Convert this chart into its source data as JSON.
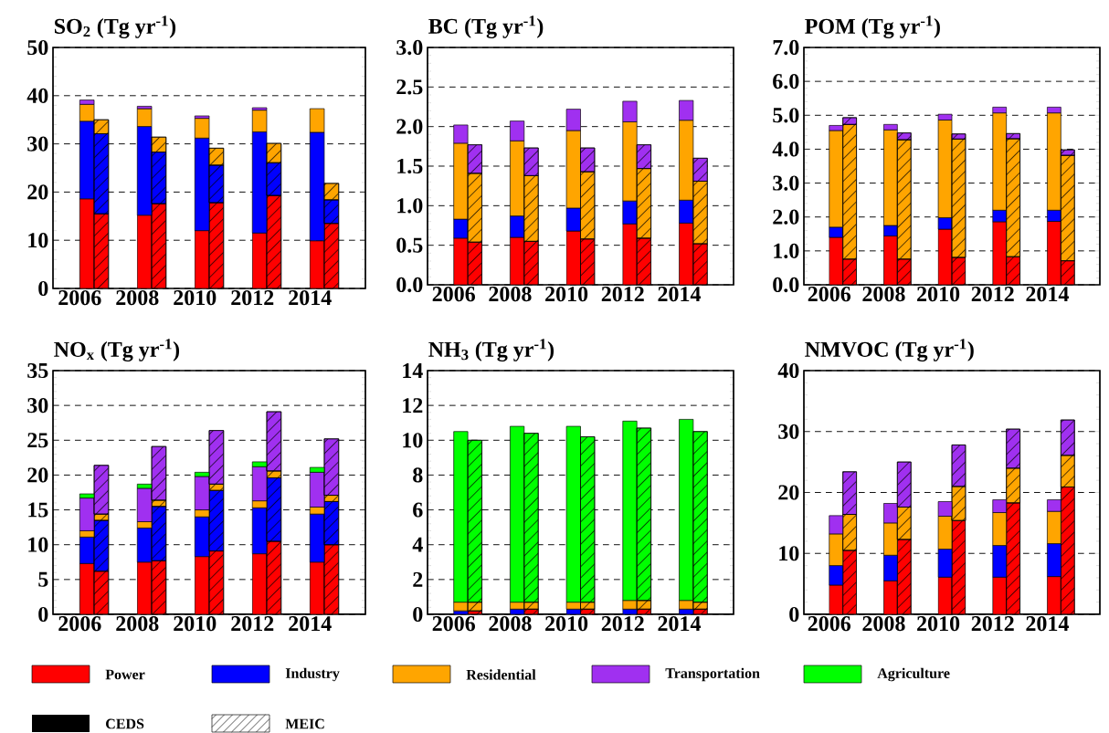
{
  "chart_data": [
    {
      "type": "bar",
      "stacked": true,
      "grid": "y",
      "title": "SO$_{2}$ (Tg yr$^{-1}$)",
      "categories": [
        "2006",
        null,
        "2008",
        null,
        "2010",
        null,
        "2012",
        null,
        "2014",
        null
      ],
      "ylim": [
        0,
        50
      ],
      "yticks": [
        0,
        10,
        20,
        30,
        40,
        50
      ],
      "series": [
        {
          "color": "#ff0000",
          "values": [
            18.6,
            15.5,
            15.2,
            17.6,
            12.0,
            17.8,
            11.5,
            19.3,
            9.9,
            13.5
          ]
        },
        {
          "color": "#0000ff",
          "values": [
            16.1,
            16.6,
            18.4,
            10.7,
            19.2,
            7.8,
            21.0,
            6.8,
            22.5,
            4.9
          ]
        },
        {
          "color": "#ffa500",
          "values": [
            3.5,
            2.9,
            3.7,
            3.1,
            4.1,
            3.5,
            4.5,
            4.0,
            4.9,
            3.4
          ]
        },
        {
          "color": "#a030f0",
          "values": [
            0.9,
            null,
            0.5,
            null,
            0.5,
            null,
            0.5,
            null,
            null,
            null
          ]
        }
      ]
    },
    {
      "type": "bar",
      "stacked": true,
      "grid": "y",
      "title": "BC (Tg yr$^{-1}$)",
      "categories": [
        "2006",
        null,
        "2008",
        null,
        "2010",
        null,
        "2012",
        null,
        "2014",
        null
      ],
      "ylim": [
        0,
        3.0
      ],
      "yticks": [
        {
          "value": 0,
          "label": "0.0"
        },
        {
          "value": 0.5,
          "label": "0.5"
        },
        {
          "value": 1,
          "label": "1.0"
        },
        {
          "value": 1.5,
          "label": "1.5"
        },
        {
          "value": 2,
          "label": "2.0"
        },
        {
          "value": 2.5,
          "label": "2.5"
        },
        {
          "value": 3,
          "label": "3.0"
        }
      ],
      "series": [
        {
          "color": "#ff0000",
          "values": [
            0.59,
            0.54,
            0.6,
            0.55,
            0.68,
            0.58,
            0.77,
            0.59,
            0.78,
            0.52
          ]
        },
        {
          "color": "#0000ff",
          "values": [
            0.24,
            null,
            0.27,
            null,
            0.29,
            null,
            0.29,
            null,
            0.29,
            null
          ]
        },
        {
          "color": "#ffa500",
          "values": [
            0.96,
            0.87,
            0.95,
            0.83,
            0.98,
            0.85,
            1.0,
            0.88,
            1.01,
            0.79
          ]
        },
        {
          "color": "#a030f0",
          "values": [
            0.23,
            0.36,
            0.25,
            0.35,
            0.27,
            0.3,
            0.26,
            0.3,
            0.25,
            0.29
          ]
        }
      ]
    },
    {
      "type": "bar",
      "stacked": true,
      "grid": "y",
      "title": "POM (Tg yr$^{-1}$)",
      "categories": [
        "2006",
        null,
        "2008",
        null,
        "2010",
        null,
        "2012",
        null,
        "2014",
        null
      ],
      "ylim": [
        0,
        7.0
      ],
      "yticks": [
        {
          "value": 0,
          "label": "0.0"
        },
        {
          "value": 1,
          "label": "1.0"
        },
        {
          "value": 2,
          "label": "2.0"
        },
        {
          "value": 3,
          "label": "3.0"
        },
        {
          "value": 4,
          "label": "4.0"
        },
        {
          "value": 5,
          "label": "5.0"
        },
        {
          "value": 6,
          "label": "6.0"
        },
        {
          "value": 7,
          "label": "7.0"
        }
      ],
      "series": [
        {
          "color": "#ff0000",
          "values": [
            1.4,
            0.76,
            1.44,
            0.76,
            1.64,
            0.81,
            1.86,
            0.83,
            1.87,
            0.71
          ]
        },
        {
          "color": "#0000ff",
          "values": [
            0.3,
            null,
            0.31,
            null,
            0.34,
            null,
            0.34,
            null,
            0.33,
            null
          ]
        },
        {
          "color": "#ffa500",
          "values": [
            2.85,
            3.97,
            2.82,
            3.52,
            2.88,
            3.49,
            2.87,
            3.48,
            2.87,
            3.11
          ]
        },
        {
          "color": "#a030f0",
          "values": [
            0.15,
            0.2,
            0.16,
            0.2,
            0.17,
            0.15,
            0.17,
            0.15,
            0.17,
            0.16
          ]
        }
      ]
    },
    {
      "type": "bar",
      "stacked": true,
      "grid": "y",
      "legend": "bottom",
      "title": "NO$_{x}$ (Tg yr$^{-1}$)",
      "categories": [
        "2006",
        null,
        "2008",
        null,
        "2010",
        null,
        "2012",
        null,
        "2014",
        null
      ],
      "ylim": [
        0,
        35
      ],
      "yticks": [
        0,
        5,
        10,
        15,
        20,
        25,
        30,
        35
      ],
      "annotations": [
        "CEDS",
        "MEIC"
      ],
      "series": [
        {
          "name": "Power",
          "color": "#ff0000",
          "values": [
            7.3,
            6.2,
            7.5,
            7.7,
            8.3,
            9.1,
            8.7,
            10.5,
            7.5,
            10.0
          ]
        },
        {
          "name": "Industry",
          "color": "#0000ff",
          "values": [
            3.8,
            7.3,
            4.9,
            7.8,
            5.7,
            8.7,
            6.6,
            9.1,
            6.9,
            6.2
          ]
        },
        {
          "name": "Residential",
          "color": "#ffa500",
          "values": [
            0.9,
            0.9,
            0.9,
            0.9,
            1.0,
            0.9,
            1.0,
            1.0,
            1.0,
            0.9
          ]
        },
        {
          "name": "Transportation",
          "color": "#a030f0",
          "values": [
            4.7,
            7.0,
            4.8,
            7.7,
            4.8,
            7.7,
            4.9,
            8.5,
            5.0,
            8.1
          ]
        },
        {
          "name": "Agriculture",
          "color": "#00ff00",
          "values": [
            0.6,
            null,
            0.6,
            null,
            0.6,
            null,
            0.7,
            null,
            0.7,
            null
          ]
        }
      ]
    },
    {
      "type": "bar",
      "stacked": true,
      "grid": "y",
      "title": "NH$_{3}$ (Tg yr$^{-1}$)",
      "categories": [
        "2006",
        null,
        "2008",
        null,
        "2010",
        null,
        "2012",
        null,
        "2014",
        null
      ],
      "ylim": [
        0,
        14
      ],
      "yticks": [
        0,
        2,
        4,
        6,
        8,
        10,
        12,
        14
      ],
      "series": [
        {
          "color": "#ff0000",
          "values": [
            null,
            0.2,
            null,
            0.3,
            null,
            0.3,
            null,
            0.3,
            null,
            0.3
          ]
        },
        {
          "color": "#0000ff",
          "values": [
            0.2,
            null,
            0.3,
            null,
            0.3,
            null,
            0.3,
            null,
            0.3,
            null
          ]
        },
        {
          "color": "#ffa500",
          "values": [
            0.5,
            0.5,
            0.4,
            0.4,
            0.4,
            0.4,
            0.5,
            0.5,
            0.5,
            0.4
          ]
        },
        {
          "color": "#00ff00",
          "values": [
            9.8,
            9.3,
            10.1,
            9.7,
            10.1,
            9.5,
            10.3,
            9.9,
            10.4,
            9.8
          ]
        }
      ]
    },
    {
      "type": "bar",
      "stacked": true,
      "grid": "y",
      "title": "NMVOC (Tg yr$^{-1}$)",
      "categories": [
        "2006",
        null,
        "2008",
        null,
        "2010",
        null,
        "2012",
        null,
        "2014",
        null
      ],
      "ylim": [
        0,
        40
      ],
      "yticks": [
        0,
        10,
        20,
        30,
        40
      ],
      "series": [
        {
          "color": "#ff0000",
          "values": [
            4.8,
            10.5,
            5.5,
            12.3,
            6.1,
            15.4,
            6.1,
            18.3,
            6.2,
            20.9
          ]
        },
        {
          "color": "#0000ff",
          "values": [
            3.2,
            null,
            4.2,
            null,
            4.6,
            null,
            5.2,
            null,
            5.4,
            null
          ]
        },
        {
          "color": "#ffa500",
          "values": [
            5.2,
            5.9,
            5.3,
            5.3,
            5.4,
            5.6,
            5.4,
            5.7,
            5.3,
            5.2
          ]
        },
        {
          "color": "#a030f0",
          "values": [
            3.0,
            7.0,
            3.2,
            7.4,
            2.4,
            6.8,
            2.1,
            6.4,
            1.9,
            5.8
          ]
        }
      ]
    }
  ]
}
